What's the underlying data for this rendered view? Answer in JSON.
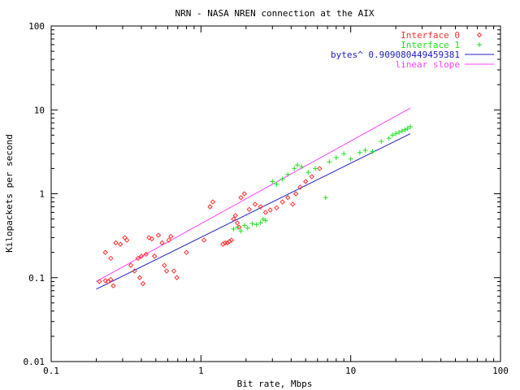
{
  "chart_data": {
    "type": "scatter",
    "title": "NRN - NASA NREN connection at the AIX",
    "xlabel": "Bit rate, Mbps",
    "ylabel": "Kilopackets per second",
    "x_scale": "log",
    "y_scale": "log",
    "xlim": [
      0.1,
      100
    ],
    "ylim": [
      0.01,
      100
    ],
    "x_ticks": [
      "0.1",
      "1",
      "10",
      "100"
    ],
    "y_ticks": [
      "0.01",
      "0.1",
      "1",
      "10",
      "100"
    ],
    "grid": false,
    "legend_position": "top-right",
    "series": [
      {
        "name": "Interface 0",
        "marker": "diamond",
        "color": "#ff3030",
        "points": [
          [
            0.21,
            0.09
          ],
          [
            0.23,
            0.092
          ],
          [
            0.24,
            0.09
          ],
          [
            0.25,
            0.095
          ],
          [
            0.26,
            0.08
          ],
          [
            0.23,
            0.2
          ],
          [
            0.25,
            0.17
          ],
          [
            0.27,
            0.26
          ],
          [
            0.29,
            0.25
          ],
          [
            0.31,
            0.3
          ],
          [
            0.32,
            0.28
          ],
          [
            0.34,
            0.14
          ],
          [
            0.36,
            0.12
          ],
          [
            0.38,
            0.17
          ],
          [
            0.39,
            0.1
          ],
          [
            0.4,
            0.18
          ],
          [
            0.41,
            0.085
          ],
          [
            0.43,
            0.19
          ],
          [
            0.45,
            0.3
          ],
          [
            0.47,
            0.29
          ],
          [
            0.49,
            0.18
          ],
          [
            0.52,
            0.32
          ],
          [
            0.55,
            0.26
          ],
          [
            0.57,
            0.14
          ],
          [
            0.59,
            0.12
          ],
          [
            0.61,
            0.28
          ],
          [
            0.63,
            0.31
          ],
          [
            0.66,
            0.12
          ],
          [
            0.69,
            0.1
          ],
          [
            0.8,
            0.2
          ],
          [
            1.05,
            0.28
          ],
          [
            1.15,
            0.7
          ],
          [
            1.2,
            0.8
          ],
          [
            1.4,
            0.25
          ],
          [
            1.45,
            0.26
          ],
          [
            1.5,
            0.26
          ],
          [
            1.55,
            0.27
          ],
          [
            1.6,
            0.28
          ],
          [
            1.65,
            0.5
          ],
          [
            1.7,
            0.55
          ],
          [
            1.75,
            0.45
          ],
          [
            1.8,
            0.4
          ],
          [
            1.85,
            0.9
          ],
          [
            1.95,
            1.0
          ],
          [
            2.1,
            0.65
          ],
          [
            2.3,
            0.75
          ],
          [
            2.5,
            0.7
          ],
          [
            2.7,
            0.6
          ],
          [
            2.9,
            0.64
          ],
          [
            3.2,
            0.68
          ],
          [
            3.5,
            0.8
          ],
          [
            3.8,
            0.9
          ],
          [
            4.1,
            0.75
          ],
          [
            4.3,
            1.0
          ],
          [
            4.6,
            1.2
          ],
          [
            5.0,
            1.4
          ],
          [
            5.5,
            1.6
          ],
          [
            6.2,
            2.0
          ]
        ]
      },
      {
        "name": "Interface 1",
        "marker": "plus",
        "color": "#20e020",
        "points": [
          [
            1.65,
            0.38
          ],
          [
            1.75,
            0.4
          ],
          [
            1.85,
            0.36
          ],
          [
            1.95,
            0.42
          ],
          [
            2.05,
            0.39
          ],
          [
            2.2,
            0.44
          ],
          [
            2.35,
            0.43
          ],
          [
            2.5,
            0.45
          ],
          [
            2.7,
            0.48
          ],
          [
            2.6,
            0.5
          ],
          [
            3.0,
            1.4
          ],
          [
            3.2,
            1.3
          ],
          [
            3.5,
            1.5
          ],
          [
            3.8,
            1.7
          ],
          [
            4.2,
            2.0
          ],
          [
            4.4,
            2.2
          ],
          [
            4.7,
            2.1
          ],
          [
            5.2,
            1.8
          ],
          [
            5.8,
            2.0
          ],
          [
            6.8,
            0.9
          ],
          [
            7.2,
            2.4
          ],
          [
            8.0,
            2.7
          ],
          [
            9.0,
            3.0
          ],
          [
            10.0,
            2.6
          ],
          [
            11.5,
            3.1
          ],
          [
            12.5,
            3.3
          ],
          [
            14.0,
            3.2
          ],
          [
            16.0,
            4.2
          ],
          [
            18.0,
            4.6
          ],
          [
            19.0,
            5.0
          ],
          [
            20.0,
            5.2
          ],
          [
            21.0,
            5.4
          ],
          [
            22.0,
            5.6
          ],
          [
            23.0,
            5.8
          ],
          [
            24.0,
            6.0
          ],
          [
            25.0,
            6.3
          ]
        ]
      }
    ],
    "lines": [
      {
        "name": "bytes^ 0.909080449459381",
        "color": "#2020c0",
        "x": [
          0.2,
          25
        ],
        "y": [
          0.073,
          5.2
        ]
      },
      {
        "name": "linear slope",
        "color": "#ff40ff",
        "x": [
          0.2,
          25
        ],
        "y": [
          0.09,
          10.5
        ]
      }
    ]
  }
}
